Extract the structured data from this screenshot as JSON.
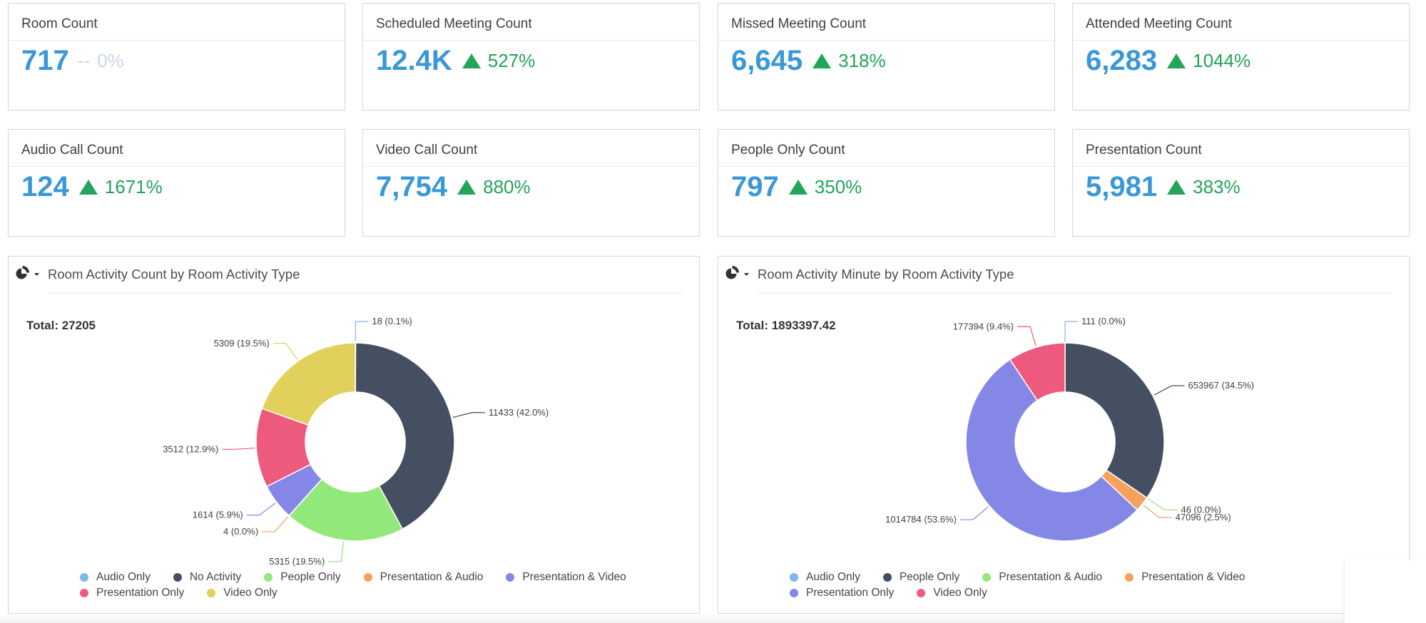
{
  "kpis": [
    {
      "title": "Room Count",
      "value": "717",
      "dash": "--",
      "change": "0%",
      "trend": "none"
    },
    {
      "title": "Scheduled Meeting Count",
      "value": "12.4K",
      "change": "527%",
      "trend": "up"
    },
    {
      "title": "Missed Meeting Count",
      "value": "6,645",
      "change": "318%",
      "trend": "up"
    },
    {
      "title": "Attended Meeting Count",
      "value": "6,283",
      "change": "1044%",
      "trend": "up"
    },
    {
      "title": "Audio Call Count",
      "value": "124",
      "change": "1671%",
      "trend": "up"
    },
    {
      "title": "Video Call Count",
      "value": "7,754",
      "change": "880%",
      "trend": "up"
    },
    {
      "title": "People Only Count",
      "value": "797",
      "change": "350%",
      "trend": "up"
    },
    {
      "title": "Presentation Count",
      "value": "5,981",
      "change": "383%",
      "trend": "up"
    }
  ],
  "colors": {
    "accent_value": "#3a98d8",
    "trend_up": "#22a45a",
    "neutral": "#c9d6e6"
  },
  "chart_data": [
    {
      "type": "pie",
      "title": "Room Activity Count by Room Activity Type",
      "total_label": "Total: 27205",
      "legend": [
        {
          "label": "Audio Only",
          "color": "#7fb6ea"
        },
        {
          "label": "No Activity",
          "color": "#444f61"
        },
        {
          "label": "People Only",
          "color": "#93e87c"
        },
        {
          "label": "Presentation & Audio",
          "color": "#f5a15b"
        },
        {
          "label": "Presentation & Video",
          "color": "#8487e6"
        },
        {
          "label": "Presentation Only",
          "color": "#ee5a7e"
        },
        {
          "label": "Video Only",
          "color": "#e1d15c"
        }
      ],
      "slices": [
        {
          "name": "Audio Only",
          "value": 18,
          "label": "18 (0.1%)",
          "color": "#7fb6ea"
        },
        {
          "name": "No Activity",
          "value": 11433,
          "label": "11433 (42.0%)",
          "color": "#444f61"
        },
        {
          "name": "People Only",
          "value": 5315,
          "label": "5315 (19.5%)",
          "color": "#93e87c"
        },
        {
          "name": "Presentation & Audio",
          "value": 4,
          "label": "4 (0.0%)",
          "color": "#f5a15b"
        },
        {
          "name": "Presentation & Video",
          "value": 1614,
          "label": "1614 (5.9%)",
          "color": "#8487e6"
        },
        {
          "name": "Presentation Only",
          "value": 3512,
          "label": "3512 (12.9%)",
          "color": "#ee5a7e"
        },
        {
          "name": "Video Only",
          "value": 5309,
          "label": "5309 (19.5%)",
          "color": "#e1d15c"
        }
      ]
    },
    {
      "type": "pie",
      "title": "Room Activity Minute by Room Activity Type",
      "total_label": "Total: 1893397.42",
      "legend": [
        {
          "label": "Audio Only",
          "color": "#7fb6ea"
        },
        {
          "label": "People Only",
          "color": "#444f61"
        },
        {
          "label": "Presentation & Audio",
          "color": "#93e87c"
        },
        {
          "label": "Presentation & Video",
          "color": "#f5a15b"
        },
        {
          "label": "Presentation Only",
          "color": "#8487e6"
        },
        {
          "label": "Video Only",
          "color": "#ee5a7e"
        }
      ],
      "slices": [
        {
          "name": "Audio Only",
          "value": 111,
          "label": "111 (0.0%)",
          "color": "#7fb6ea"
        },
        {
          "name": "People Only",
          "value": 653967,
          "label": "653967 (34.5%)",
          "color": "#444f61"
        },
        {
          "name": "Presentation & Audio",
          "value": 46,
          "label": "46 (0.0%)",
          "color": "#93e87c"
        },
        {
          "name": "Presentation & Video",
          "value": 47096,
          "label": "47096 (2.5%)",
          "color": "#f5a15b"
        },
        {
          "name": "Presentation Only",
          "value": 1014784,
          "label": "1014784 (53.6%)",
          "color": "#8487e6"
        },
        {
          "name": "Video Only",
          "value": 177394,
          "label": "177394 (9.4%)",
          "color": "#ee5a7e"
        }
      ]
    }
  ]
}
